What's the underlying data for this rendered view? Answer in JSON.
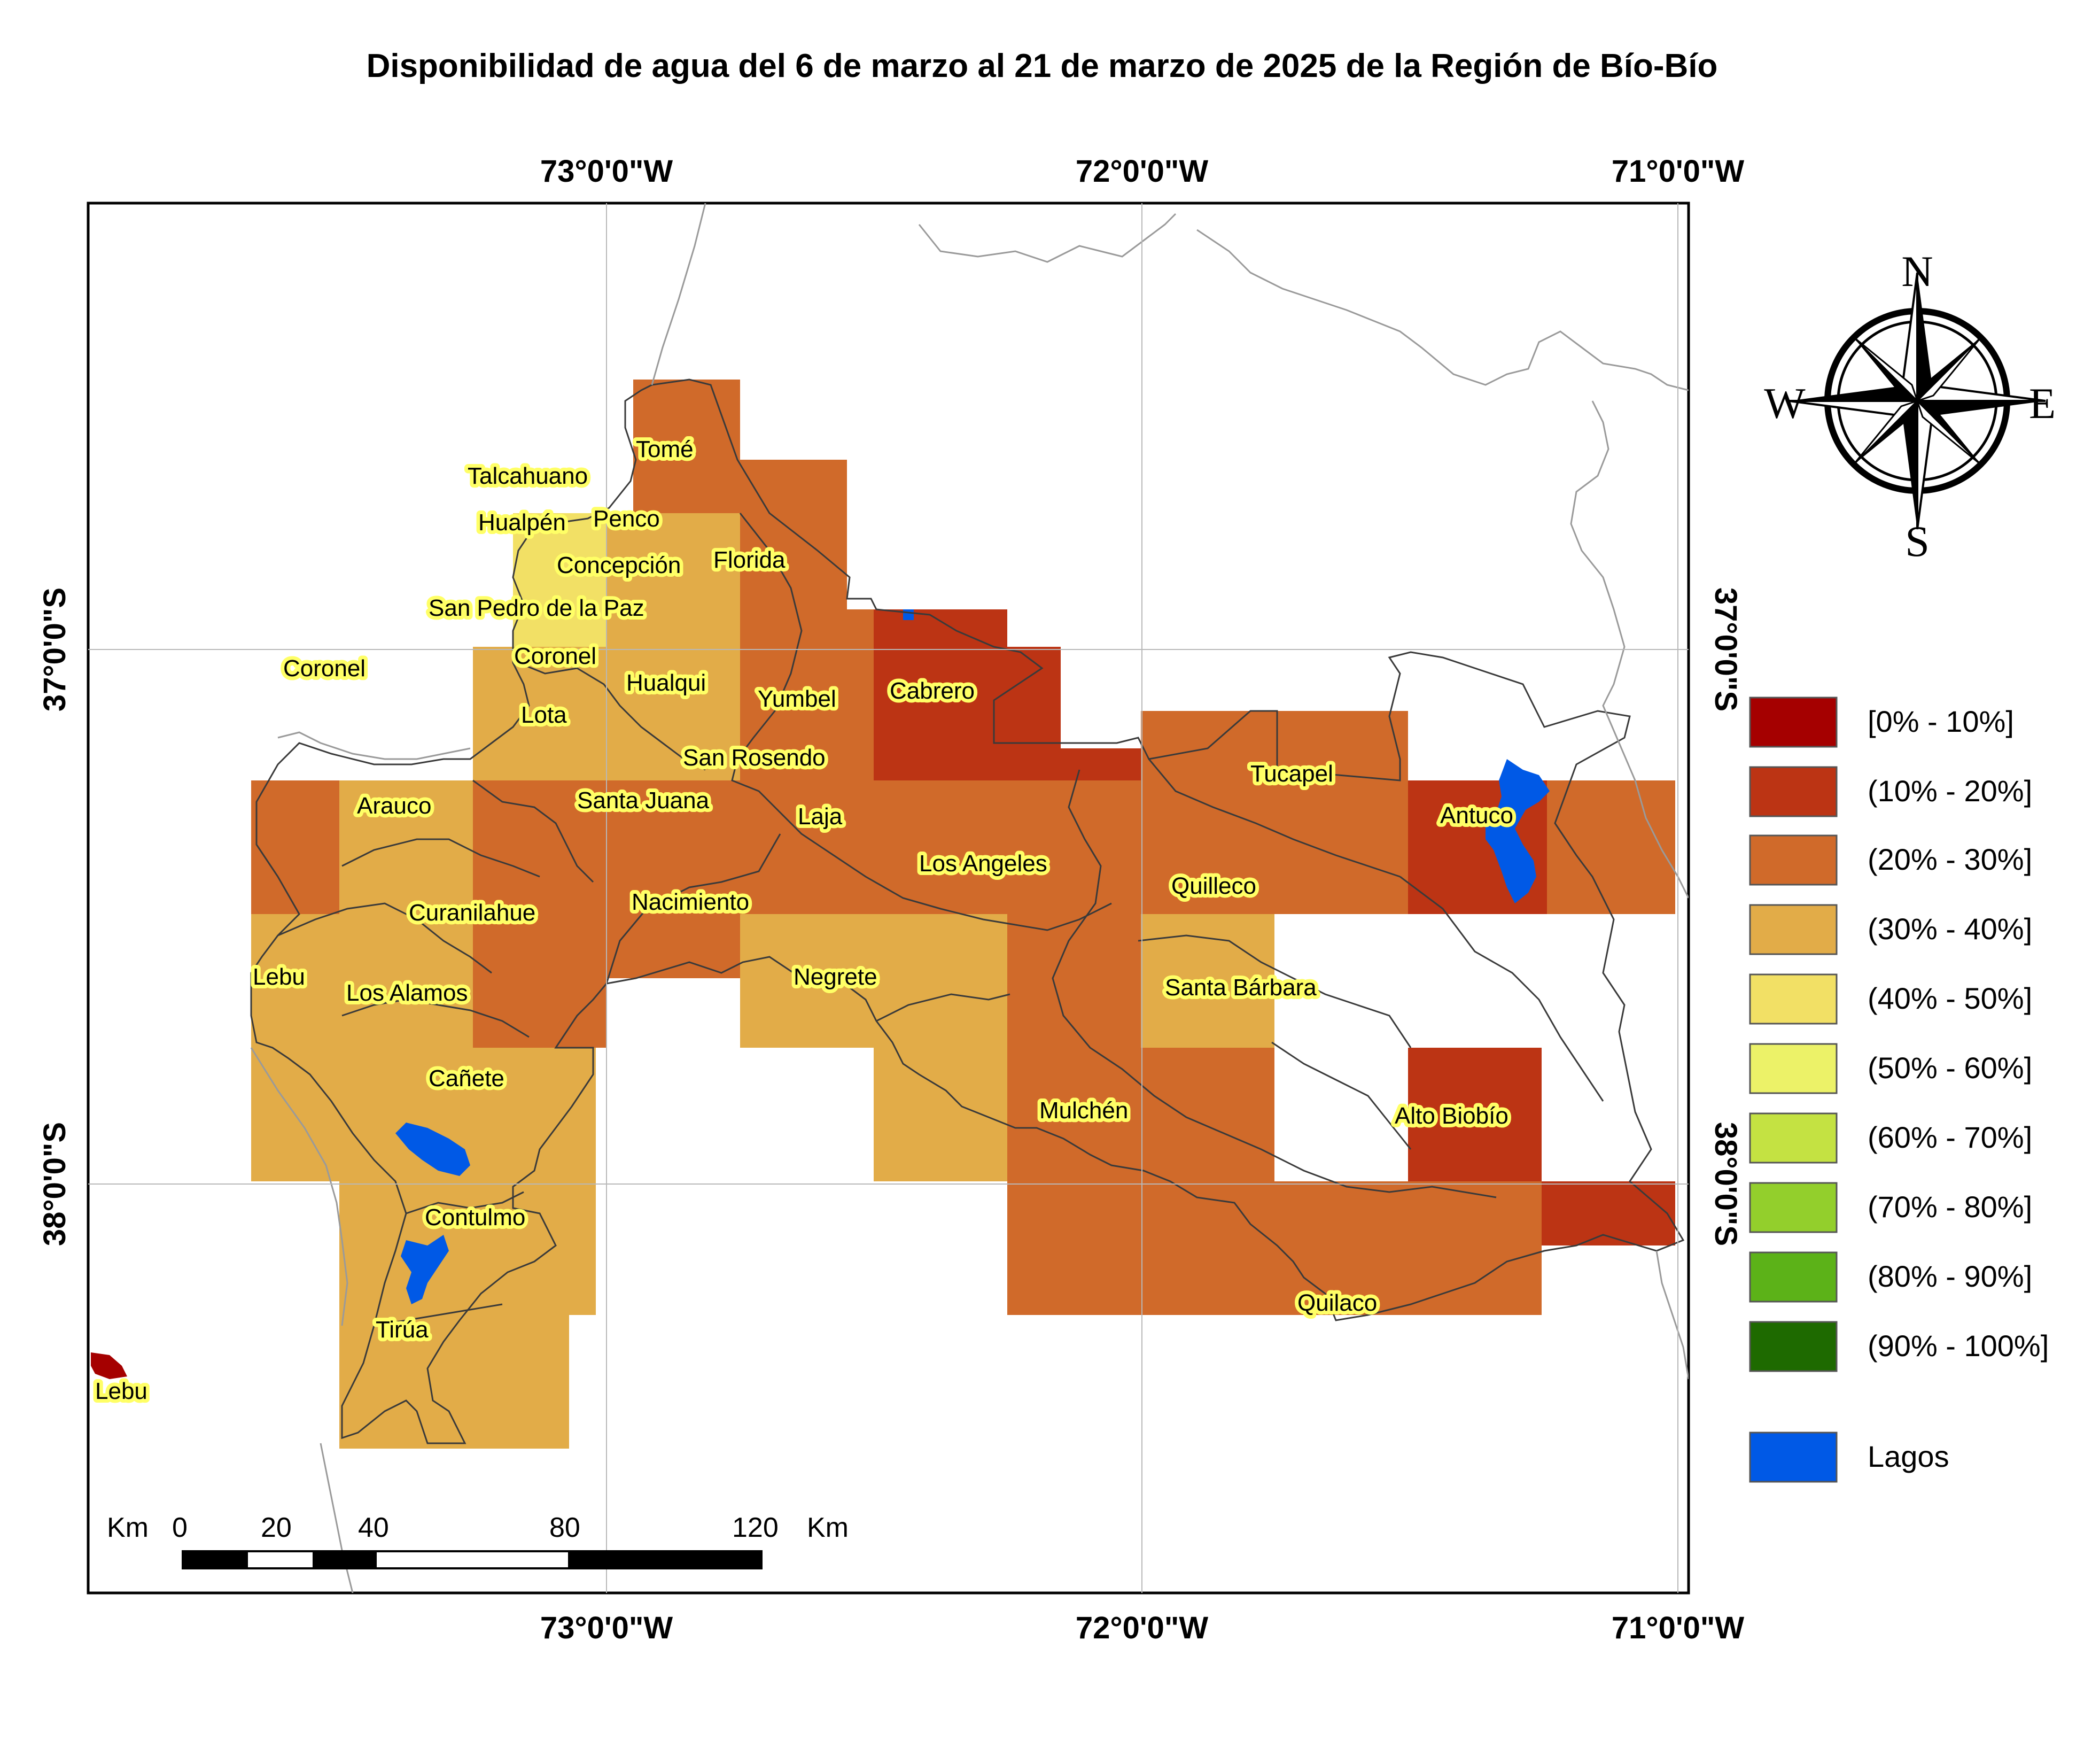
{
  "title": "Disponibilidad de agua del 6 de marzo al 21 de marzo de 2025 de la Región de Bío-Bío",
  "coords": {
    "lon": [
      "73°0'0\"W",
      "72°0'0\"W",
      "71°0'0\"W"
    ],
    "lat": [
      "37°0'0\"S",
      "38°0'0\"S"
    ]
  },
  "compass": {
    "n": "N",
    "s": "S",
    "e": "E",
    "w": "W"
  },
  "legend": [
    {
      "label": "[0% - 10%]",
      "color": "#a50000"
    },
    {
      "label": "(10% - 20%]",
      "color": "#bc3414"
    },
    {
      "label": "(20% - 30%]",
      "color": "#d06a2a"
    },
    {
      "label": "(30% - 40%]",
      "color": "#e2ac48"
    },
    {
      "label": "(40% - 50%]",
      "color": "#f2e065"
    },
    {
      "label": "(50% - 60%]",
      "color": "#ecf268"
    },
    {
      "label": "(60% - 70%]",
      "color": "#c4e242"
    },
    {
      "label": "(70% - 80%]",
      "color": "#93cf2c"
    },
    {
      "label": "(80% - 90%]",
      "color": "#5cb218"
    },
    {
      "label": "(90% - 100%]",
      "color": "#1e6a00"
    },
    {
      "label": "Lagos",
      "color": "#0059e6"
    }
  ],
  "scalebar": {
    "unit_left": "Km",
    "ticks": [
      "0",
      "20",
      "40",
      "80",
      "120"
    ],
    "unit_right": "Km"
  },
  "places": [
    "Tomé",
    "Talcahuano",
    "Hualpén",
    "Penco",
    "Florida",
    "Concepción",
    "San Pedro de la Paz",
    "Coronel",
    "Coronel",
    "Hualqui",
    "Yumbel",
    "Cabrero",
    "Lota",
    "San Rosendo",
    "Tucapel",
    "Arauco",
    "Santa Juana",
    "Laja",
    "Antuco",
    "Los Angeles",
    "Quilleco",
    "Curanilahue",
    "Nacimiento",
    "Lebu",
    "Los Alamos",
    "Negrete",
    "Santa Bárbara",
    "Cañete",
    "Mulchén",
    "Alto Biobío",
    "Contulmo",
    "Quilaco",
    "Tirúa",
    "Lebu"
  ]
}
